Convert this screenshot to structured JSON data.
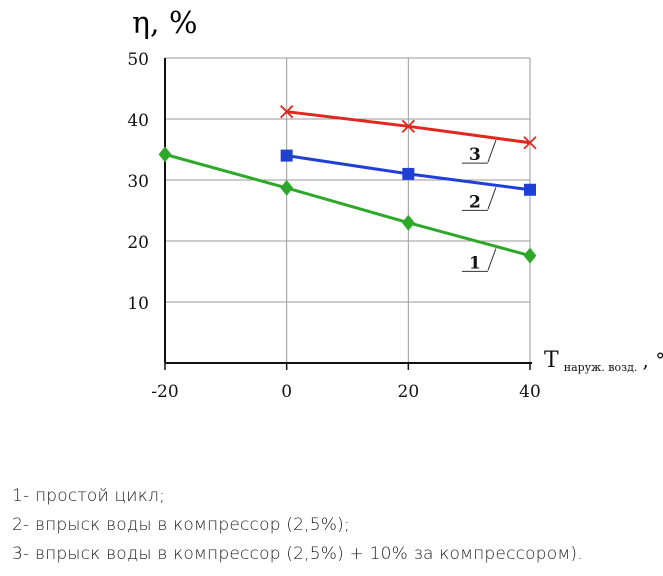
{
  "chart_data": {
    "type": "line",
    "ylabel": "η, %",
    "xlabel_main": "T",
    "xlabel_sub": "наруж. возд.",
    "xlabel_unit": ", °C",
    "x_ticks": [
      -20,
      0,
      20,
      40
    ],
    "y_ticks": [
      10,
      20,
      30,
      40,
      50
    ],
    "xlim": [
      -20,
      40
    ],
    "ylim": [
      0,
      50
    ],
    "grid": true,
    "series": [
      {
        "name": "1",
        "color": "#2ea82a",
        "marker": "diamond",
        "x": [
          -20,
          0,
          20,
          40
        ],
        "y": [
          34.2,
          28.7,
          23.0,
          17.6
        ]
      },
      {
        "name": "2",
        "color": "#1f3fd6",
        "marker": "square",
        "x": [
          0,
          20,
          40
        ],
        "y": [
          34.0,
          31.0,
          28.4
        ]
      },
      {
        "name": "3",
        "color": "#e0281e",
        "marker": "cross",
        "x": [
          0,
          20,
          40
        ],
        "y": [
          41.2,
          38.8,
          36.1
        ]
      }
    ]
  },
  "legend": {
    "line1": "1- простой цикл;",
    "line2": "2- впрыск воды в компрессор (2,5%);",
    "line3": "3- впрыск воды в компрессор (2,5%) + 10% за компрессором)."
  }
}
